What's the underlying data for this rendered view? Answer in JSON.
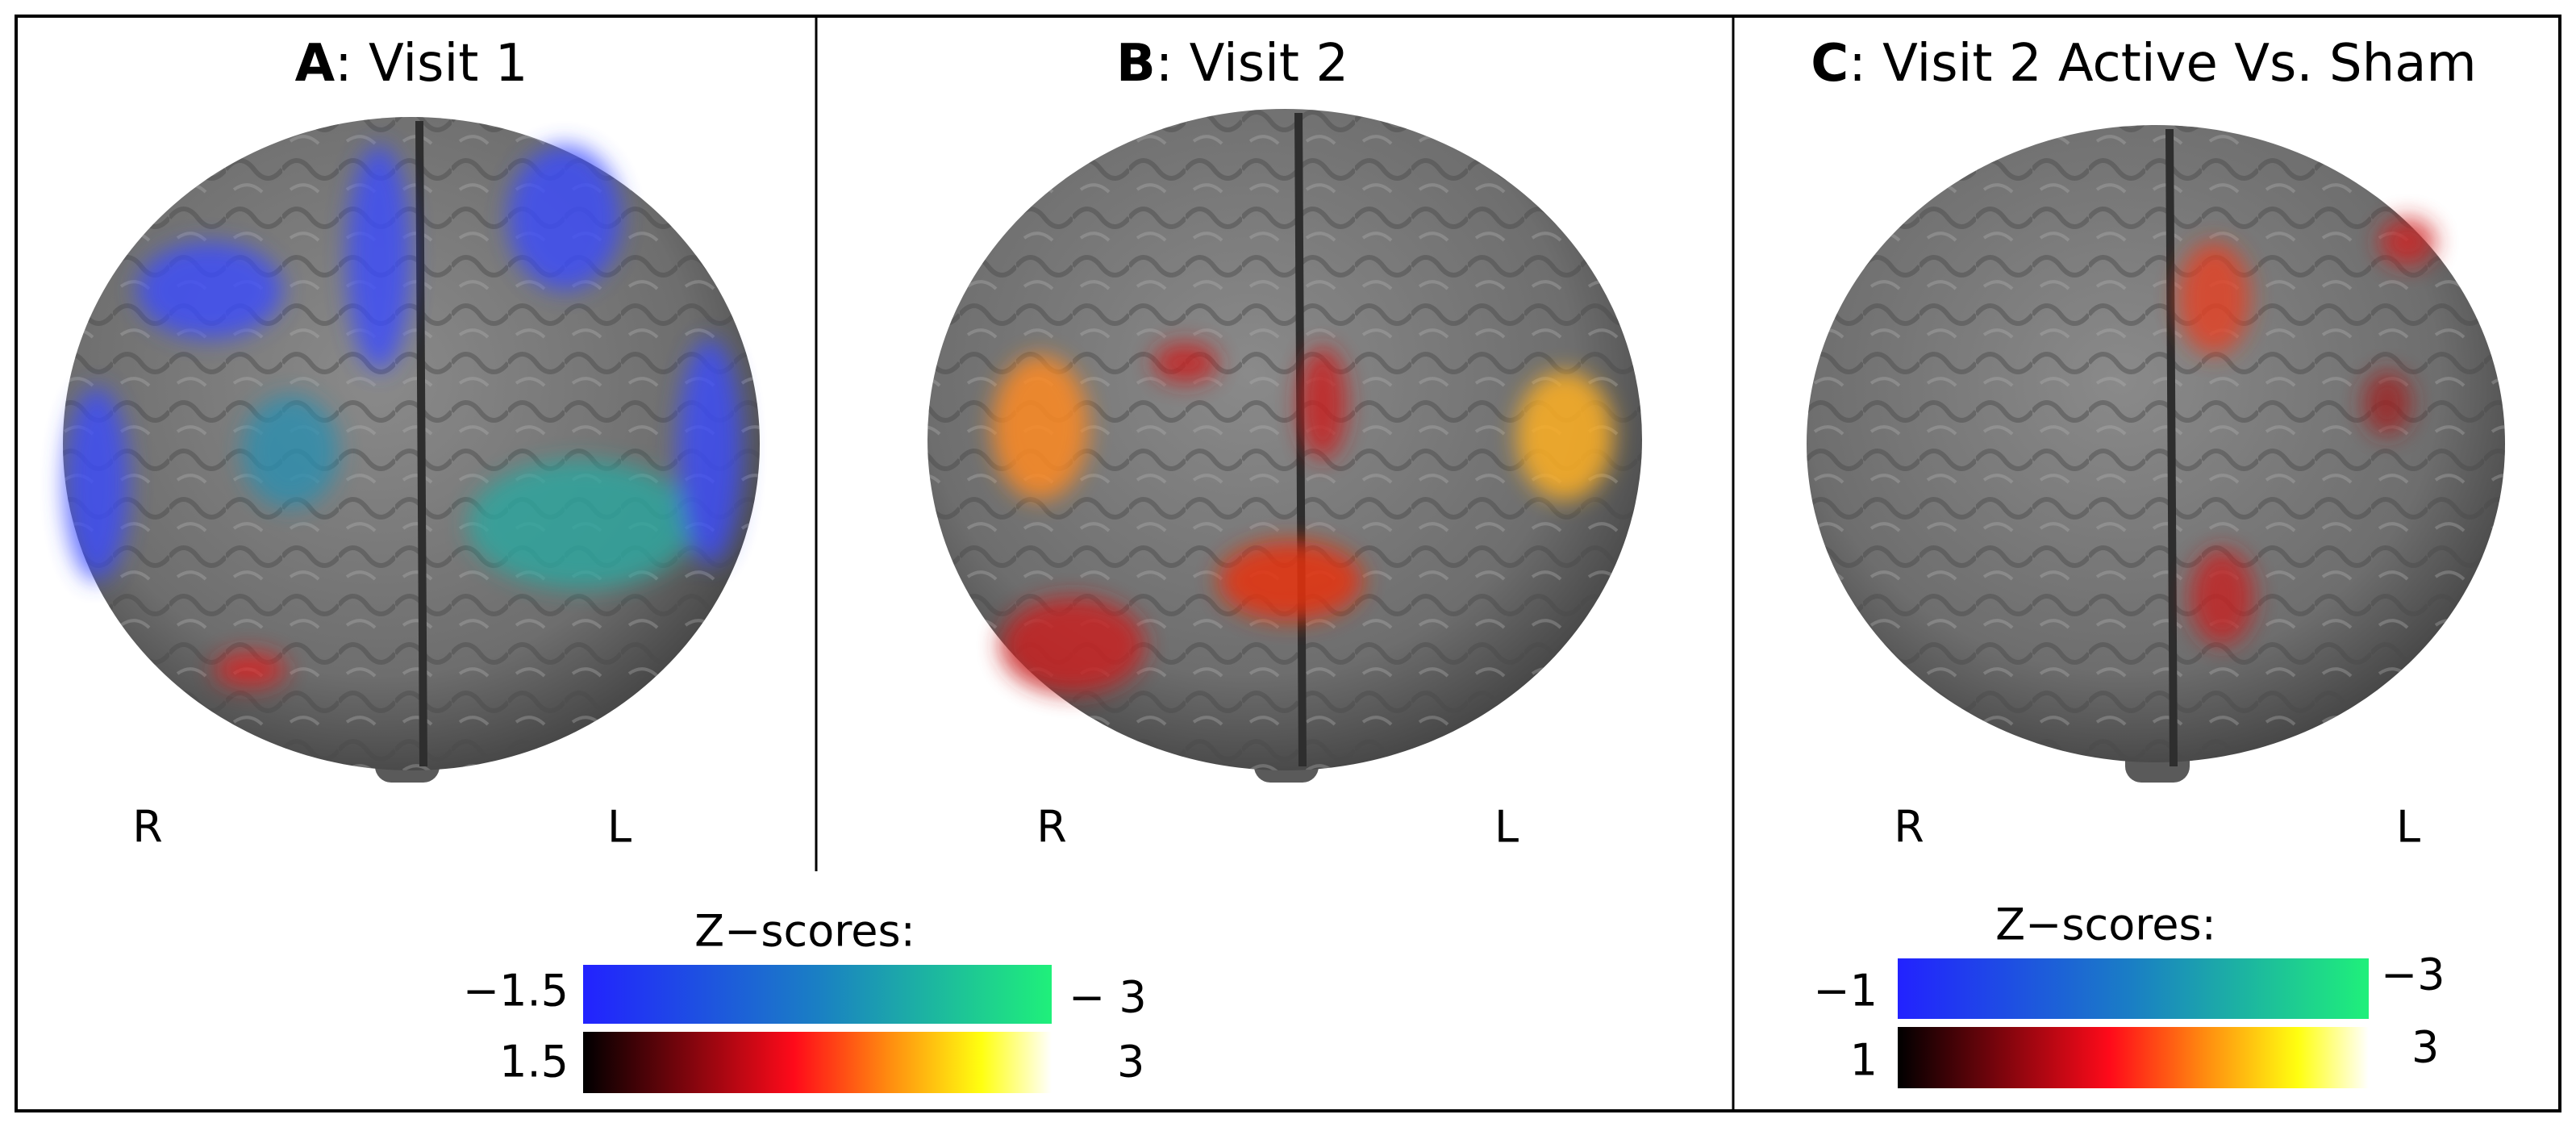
{
  "panels": [
    {
      "letter": "A",
      "title": ": Visit 1",
      "left_label": "R",
      "right_label": "L"
    },
    {
      "letter": "B",
      "title": ": Visit 2",
      "left_label": "R",
      "right_label": "L"
    },
    {
      "letter": "C",
      "title": ": Visit 2 Active Vs. Sham",
      "left_label": "R",
      "right_label": "L"
    }
  ],
  "colorbars": [
    {
      "title": "Z−scores:",
      "negative_low": "−1.5",
      "negative_high": "− 3",
      "positive_low": "1.5",
      "positive_high": "3"
    },
    {
      "title": "Z−scores:",
      "negative_low": "−1",
      "negative_high": "−3",
      "positive_low": "1",
      "positive_high": "3"
    }
  ]
}
